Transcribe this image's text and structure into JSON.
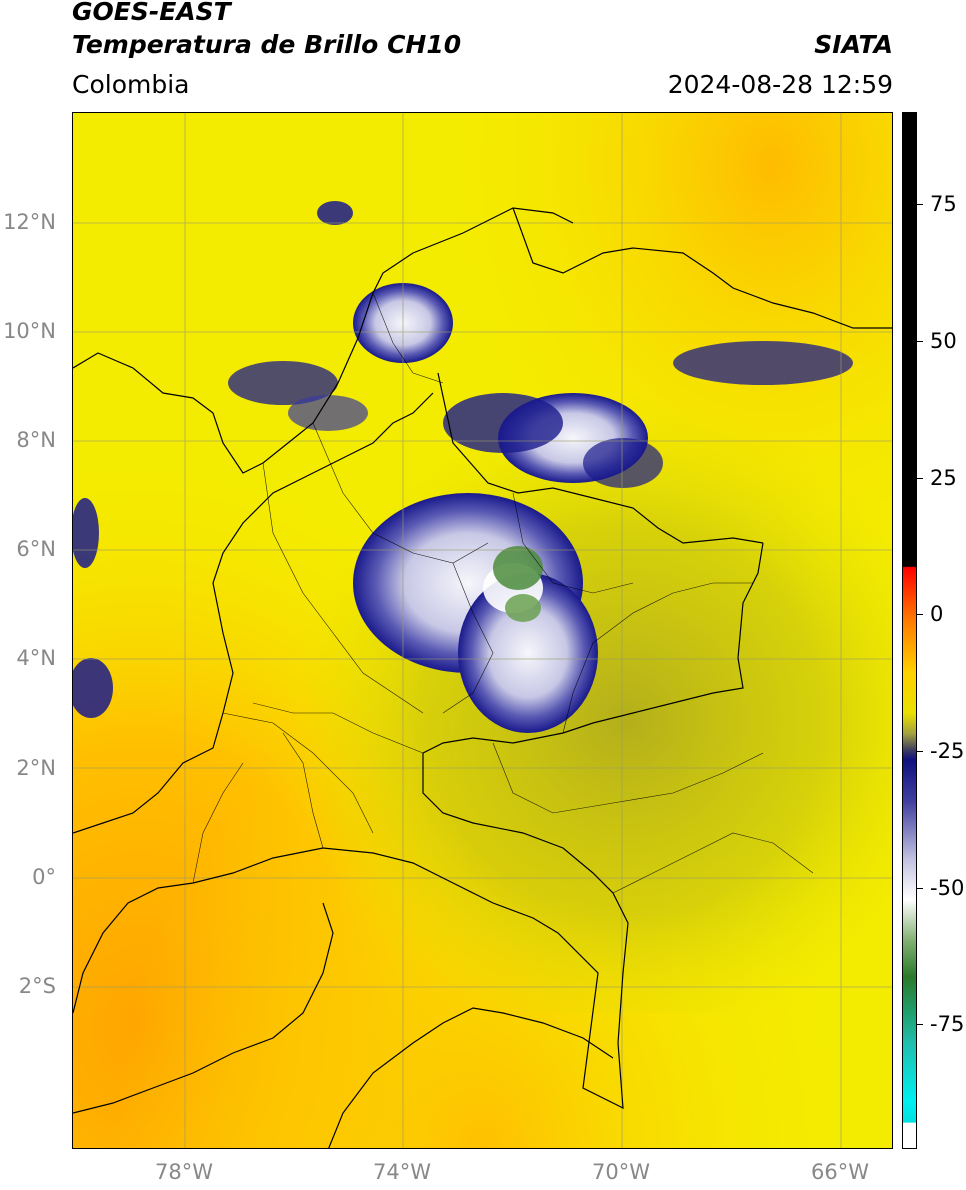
{
  "header": {
    "title_line1": "GOES-EAST",
    "title_line2": "Temperatura de Brillo CH10",
    "region": "Colombia",
    "agency": "SIATA",
    "datetime": "2024-08-28 12:59"
  },
  "map": {
    "lat_labels": [
      "12°N",
      "10°N",
      "8°N",
      "6°N",
      "4°N",
      "2°N",
      "0°",
      "2°S"
    ],
    "lon_labels": [
      "78°W",
      "74°W",
      "70°W",
      "66°W"
    ],
    "extent": {
      "lon_min": -80,
      "lon_max": -65,
      "lat_min": -5,
      "lat_max": 14
    },
    "colors": {
      "background": "#f4ee00",
      "warm": "#ffc400",
      "cold_cloud": "#1a1a8c",
      "very_cold": "#f0f0f8",
      "deep_convection": "#4c8c3c"
    }
  },
  "colorbar": {
    "labels": [
      "75",
      "50",
      "25",
      "0",
      "-25",
      "-50",
      "-75"
    ],
    "range": [
      -100,
      90
    ]
  }
}
